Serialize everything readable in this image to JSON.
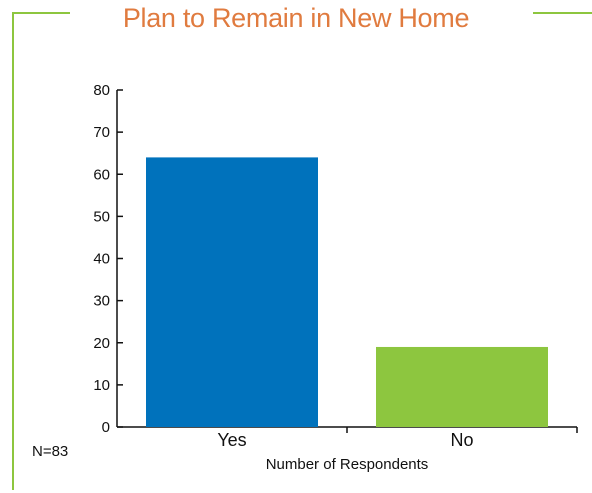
{
  "title": "Plan to Remain in New Home",
  "note": "N=83",
  "colors": {
    "frame": "#8dc63f",
    "title": "#e07b3f",
    "yes": "#0072bc",
    "no": "#8dc63f"
  },
  "chart_data": {
    "type": "bar",
    "categories": [
      "Yes",
      "No"
    ],
    "values": [
      64,
      19
    ],
    "bar_colors": [
      "#0072bc",
      "#8dc63f"
    ],
    "title": "Plan to Remain in New Home",
    "xlabel": "Number of Respondents",
    "ylabel": "",
    "ylim": [
      0,
      80
    ],
    "yticks": [
      "0",
      "10",
      "20",
      "30",
      "40",
      "50",
      "60",
      "70",
      "80"
    ],
    "grid": false,
    "legend": "none"
  }
}
